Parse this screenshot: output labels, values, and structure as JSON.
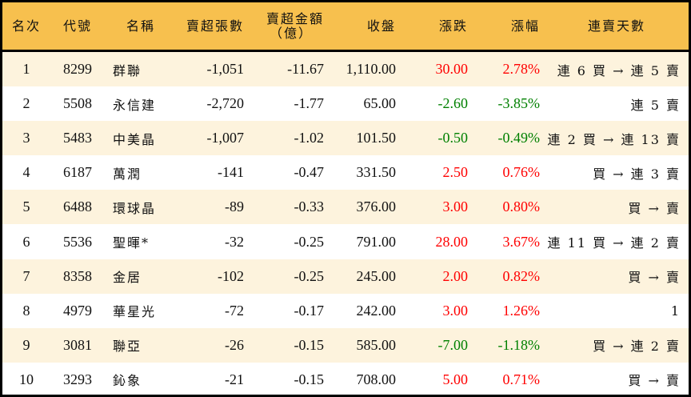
{
  "colors": {
    "header_bg": "#F7C04E",
    "alt_row_bg": "#FDF3DD",
    "up": "#FF0000",
    "down": "#008000"
  },
  "headers": [
    "名次",
    "代號",
    "名稱",
    "賣超張數",
    "賣超金額\n（億）",
    "收盤",
    "漲跌",
    "漲幅",
    "連賣天數"
  ],
  "header_amount_line1": "賣超金額",
  "header_amount_line2": "（億）",
  "rows": [
    {
      "rank": "1",
      "code": "8299",
      "name": "群聯",
      "shares": "-1,051",
      "amount": "-11.67",
      "close": "1,110.00",
      "change": "30.00",
      "pct": "2.78%",
      "dir": "up",
      "streak": "連 6 買 → 連 5 賣"
    },
    {
      "rank": "2",
      "code": "5508",
      "name": "永信建",
      "shares": "-2,720",
      "amount": "-1.77",
      "close": "65.00",
      "change": "-2.60",
      "pct": "-3.85%",
      "dir": "down",
      "streak": "連 5 賣"
    },
    {
      "rank": "3",
      "code": "5483",
      "name": "中美晶",
      "shares": "-1,007",
      "amount": "-1.02",
      "close": "101.50",
      "change": "-0.50",
      "pct": "-0.49%",
      "dir": "down",
      "streak": "連 2 買 → 連 13 賣"
    },
    {
      "rank": "4",
      "code": "6187",
      "name": "萬潤",
      "shares": "-141",
      "amount": "-0.47",
      "close": "331.50",
      "change": "2.50",
      "pct": "0.76%",
      "dir": "up",
      "streak": "買 → 連 3 賣"
    },
    {
      "rank": "5",
      "code": "6488",
      "name": "環球晶",
      "shares": "-89",
      "amount": "-0.33",
      "close": "376.00",
      "change": "3.00",
      "pct": "0.80%",
      "dir": "up",
      "streak": "買 → 賣"
    },
    {
      "rank": "6",
      "code": "5536",
      "name": "聖暉*",
      "shares": "-32",
      "amount": "-0.25",
      "close": "791.00",
      "change": "28.00",
      "pct": "3.67%",
      "dir": "up",
      "streak": "連 11 買 → 連 2 賣"
    },
    {
      "rank": "7",
      "code": "8358",
      "name": "金居",
      "shares": "-102",
      "amount": "-0.25",
      "close": "245.00",
      "change": "2.00",
      "pct": "0.82%",
      "dir": "up",
      "streak": "買 → 賣"
    },
    {
      "rank": "8",
      "code": "4979",
      "name": "華星光",
      "shares": "-72",
      "amount": "-0.17",
      "close": "242.00",
      "change": "3.00",
      "pct": "1.26%",
      "dir": "up",
      "streak": "1"
    },
    {
      "rank": "9",
      "code": "3081",
      "name": "聯亞",
      "shares": "-26",
      "amount": "-0.15",
      "close": "585.00",
      "change": "-7.00",
      "pct": "-1.18%",
      "dir": "down",
      "streak": "買 → 連 2 賣"
    },
    {
      "rank": "10",
      "code": "3293",
      "name": "鈊象",
      "shares": "-21",
      "amount": "-0.15",
      "close": "708.00",
      "change": "5.00",
      "pct": "0.71%",
      "dir": "up",
      "streak": "買 → 賣"
    }
  ]
}
